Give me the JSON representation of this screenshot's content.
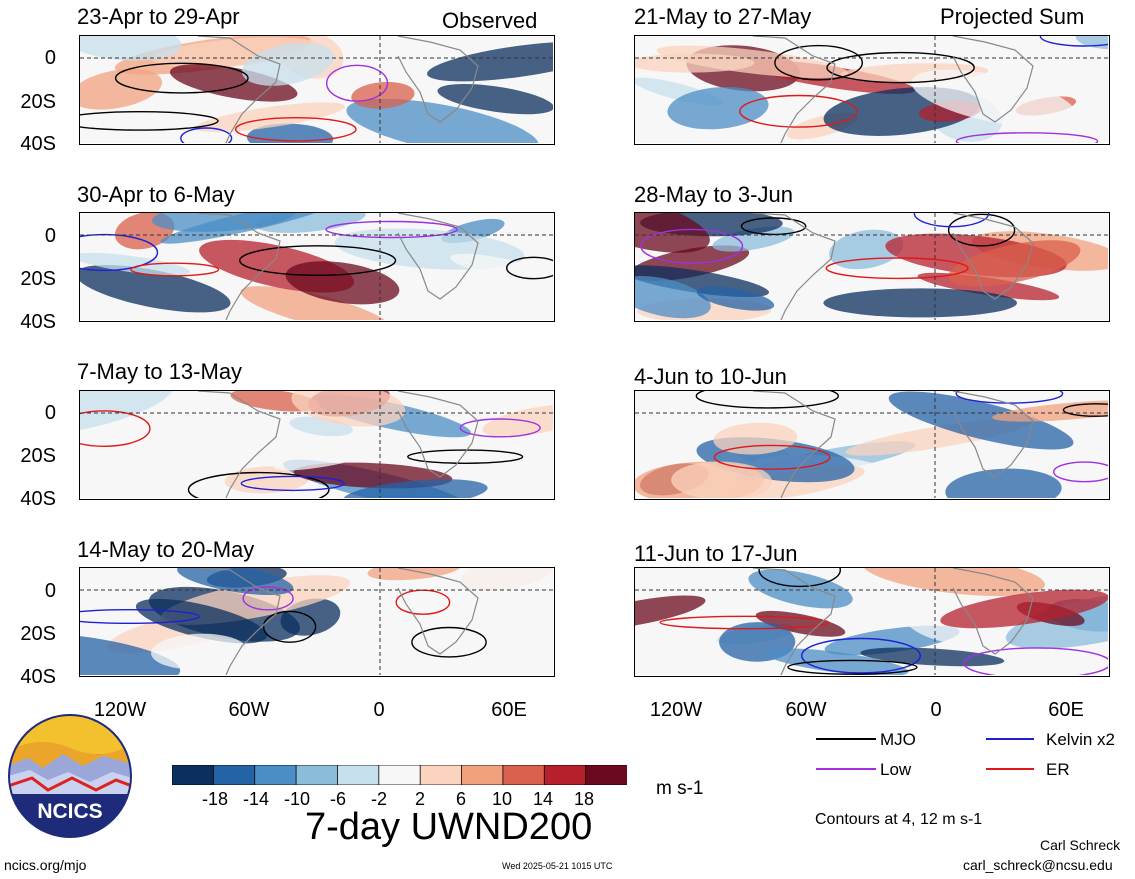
{
  "header": {
    "left": "Observed",
    "right": "Projected Sum"
  },
  "panels_left": [
    {
      "title": "23-Apr to 29-Apr"
    },
    {
      "title": "30-Apr to 6-May"
    },
    {
      "title": "7-May to 13-May"
    },
    {
      "title": "14-May to 20-May"
    }
  ],
  "panels_right": [
    {
      "title": "21-May to 27-May"
    },
    {
      "title": "28-May to 3-Jun"
    },
    {
      "title": "4-Jun to 10-Jun"
    },
    {
      "title": "11-Jun to 17-Jun"
    }
  ],
  "y_ticks": [
    "0",
    "20S",
    "40S"
  ],
  "x_ticks": [
    "120W",
    "60W",
    "0",
    "60E"
  ],
  "colorbar": {
    "labels": [
      "-18",
      "-14",
      "-10",
      "-6",
      "-2",
      "2",
      "6",
      "10",
      "14",
      "18"
    ],
    "colors": [
      "#0b2f5e",
      "#2563a7",
      "#4b8ec6",
      "#8cbcdc",
      "#c7e0ee",
      "#f7f7f7",
      "#fbd3bf",
      "#f2a17f",
      "#d9604c",
      "#b5202c",
      "#6b0a1e"
    ],
    "unit": "m s-1"
  },
  "legend": {
    "items": [
      {
        "label": "MJO",
        "color": "#000000"
      },
      {
        "label": "Kelvin x2",
        "color": "#1f1fd6"
      },
      {
        "label": "Low",
        "color": "#a030e0"
      },
      {
        "label": "ER",
        "color": "#e01818"
      }
    ],
    "contours_note": "Contours at 4, 12 m s-1"
  },
  "logo_text": "NCICS",
  "main_title": "7-day UWND200",
  "footer": {
    "left": "ncics.org/mjo",
    "center": "Wed 2025-05-21 1015 UTC",
    "author": "Carl Schreck",
    "email": "carl_schreck@ncsu.edu"
  }
}
